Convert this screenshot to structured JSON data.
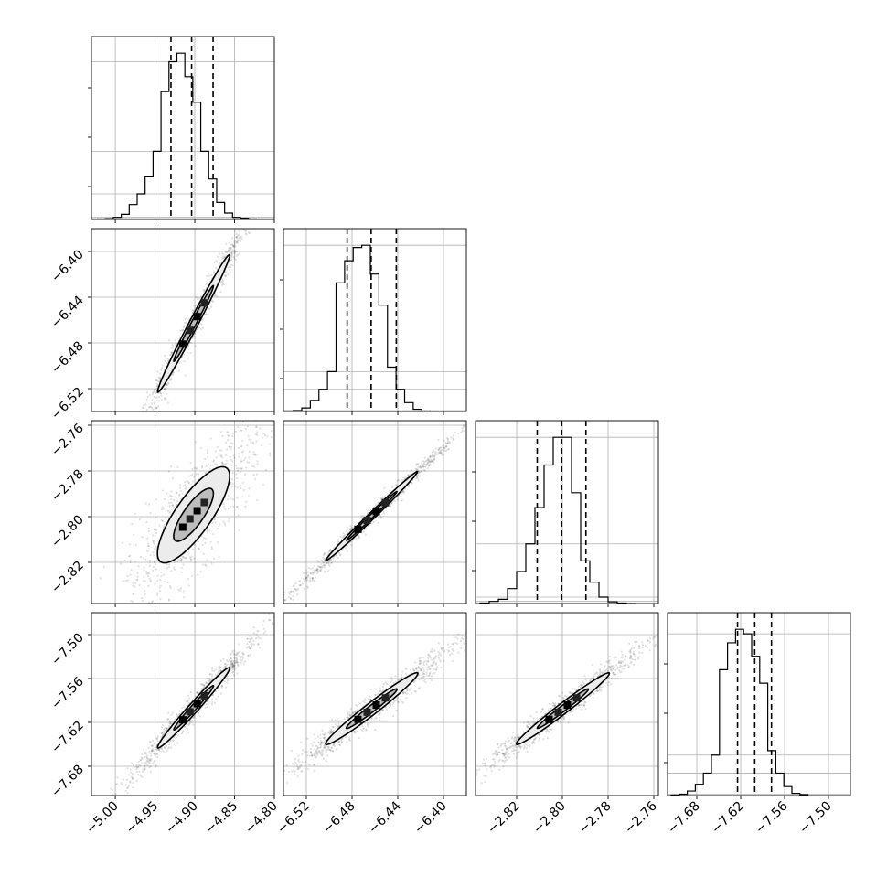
{
  "chart_data": {
    "type": "corner",
    "grid": true,
    "parameters": [
      {
        "range": [
          -5.03,
          -4.8
        ],
        "ticks": [
          "-5.00",
          "-4.95",
          "-4.90",
          "-4.85",
          "-4.80"
        ],
        "tick_values": [
          -5.0,
          -4.95,
          -4.9,
          -4.85,
          -4.8
        ],
        "quantiles": [
          -4.93,
          -4.904,
          -4.877
        ],
        "hist_edges_start": -5.0225,
        "hist_bin_width": 0.01,
        "hist_counts": [
          1,
          2,
          5,
          12,
          35,
          60,
          100,
          160,
          300,
          370,
          390,
          335,
          275,
          160,
          95,
          40,
          15,
          5,
          3,
          1
        ]
      },
      {
        "range": [
          -6.54,
          -6.38
        ],
        "ticks": [
          "-6.52",
          "-6.48",
          "-6.44",
          "-6.40"
        ],
        "tick_values": [
          -6.52,
          -6.48,
          -6.44,
          -6.4
        ],
        "quantiles": [
          -6.4843,
          -6.4633,
          -6.4413
        ],
        "hist_edges_start": -6.539,
        "hist_bin_width": 0.0075,
        "hist_counts": [
          1,
          2,
          8,
          25,
          50,
          90,
          290,
          340,
          370,
          375,
          310,
          240,
          100,
          50,
          20,
          5,
          1
        ]
      },
      {
        "range": [
          -2.838,
          -2.758
        ],
        "ticks": [
          "-2.82",
          "-2.80",
          "-2.78",
          "-2.76"
        ],
        "tick_values": [
          -2.82,
          -2.8,
          -2.78,
          -2.76
        ],
        "quantiles": [
          -2.811,
          -2.8003,
          -2.7897
        ],
        "hist_edges_start": -2.836,
        "hist_bin_width": 0.004,
        "hist_counts": [
          1,
          5,
          10,
          35,
          75,
          140,
          225,
          325,
          390,
          390,
          260,
          100,
          50,
          15,
          4,
          1,
          0
        ]
      },
      {
        "range": [
          -7.72,
          -7.47
        ],
        "ticks": [
          "-7.68",
          "-7.62",
          "-7.56",
          "-7.50"
        ],
        "tick_values": [
          -7.68,
          -7.62,
          -7.56,
          -7.5
        ],
        "quantiles": [
          -7.6243,
          -7.6008,
          -7.5779
        ],
        "hist_edges_start": -7.715,
        "hist_bin_width": 0.011,
        "hist_counts": [
          1,
          3,
          10,
          25,
          50,
          90,
          280,
          340,
          370,
          360,
          310,
          250,
          100,
          50,
          20,
          5,
          2
        ]
      }
    ],
    "contours": {
      "1-0": {
        "center": [
          -4.9015,
          -6.463
        ],
        "axes": [
          [
            0.0452,
            0.0601
          ],
          [
            -0.0038,
            0.0033
          ]
        ]
      },
      "2-0": {
        "center": [
          -4.9016,
          -2.7992
        ],
        "axes": [
          [
            0.0452,
            0.018
          ],
          [
            -0.0042,
            0.0109
          ]
        ]
      },
      "2-1": {
        "center": [
          -6.4628,
          -2.7997
        ],
        "axes": [
          [
            0.0401,
            0.0194
          ],
          [
            -0.0008,
            0.0016
          ]
        ]
      },
      "3-0": {
        "center": [
          -4.9015,
          -7.6
        ],
        "axes": [
          [
            0.0452,
            0.0548
          ],
          [
            -0.0044,
            0.0045
          ]
        ]
      },
      "3-1": {
        "center": [
          -6.4628,
          -7.6012
        ],
        "axes": [
          [
            0.0401,
            0.049
          ],
          [
            -0.005,
            0.0042
          ]
        ]
      },
      "3-2": {
        "center": [
          -2.7998,
          -7.6012
        ],
        "axes": [
          [
            0.0201,
            0.049
          ],
          [
            -0.0032,
            0.0013
          ]
        ]
      }
    }
  }
}
